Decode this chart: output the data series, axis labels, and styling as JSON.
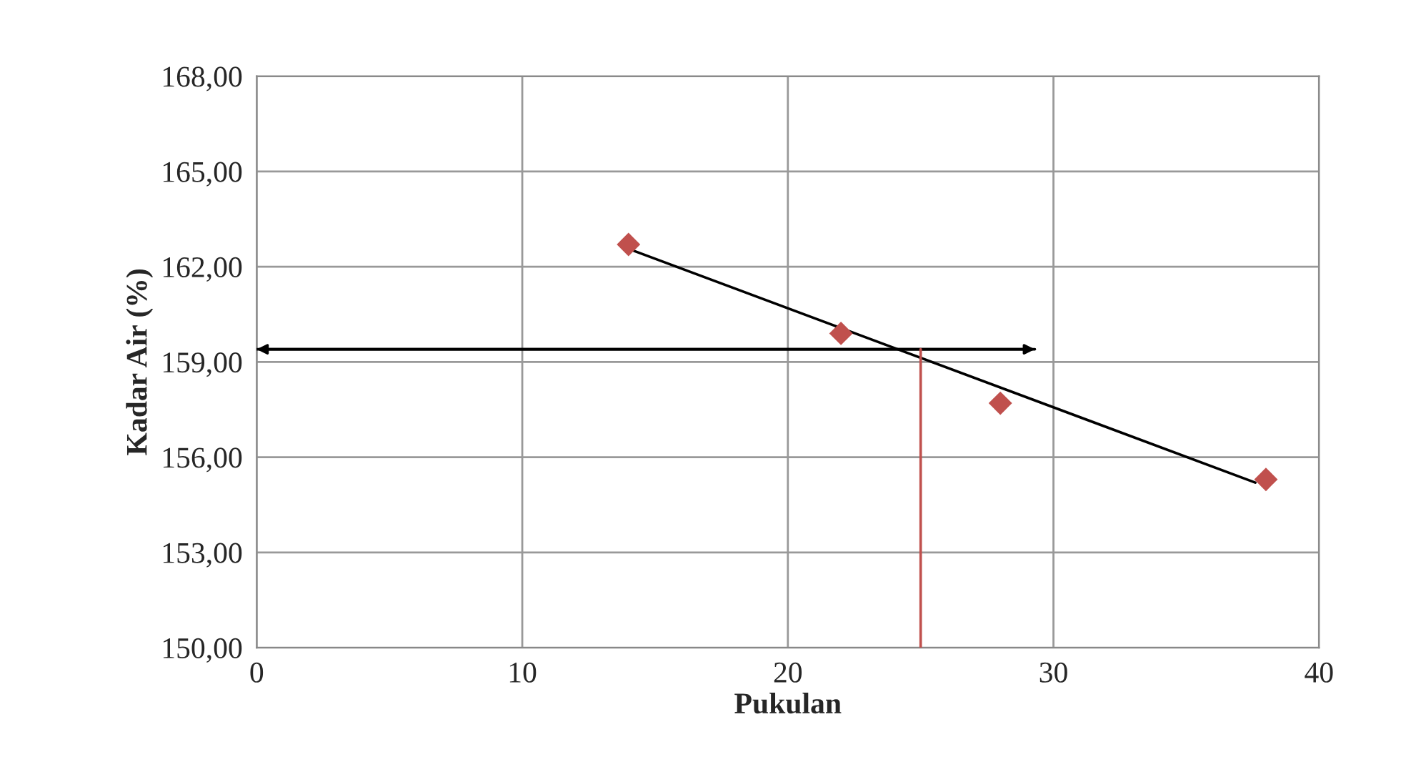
{
  "chart_data": {
    "type": "scatter",
    "xlabel": "Pukulan",
    "ylabel": "Kadar Air (%)",
    "xlim": [
      0,
      40
    ],
    "xticks": [
      0,
      10,
      20,
      30,
      40
    ],
    "ylim": [
      150,
      168
    ],
    "yticks": [
      {
        "value": 150,
        "label": "150,00"
      },
      {
        "value": 153,
        "label": "153,00"
      },
      {
        "value": 156,
        "label": "156,00"
      },
      {
        "value": 159,
        "label": "159,00"
      },
      {
        "value": 162,
        "label": "162,00"
      },
      {
        "value": 165,
        "label": "165,00"
      },
      {
        "value": 168,
        "label": "168,00"
      }
    ],
    "grid": true,
    "series": [
      {
        "marker": "diamond",
        "color": "#c0504d",
        "x": [
          14,
          22,
          28,
          38
        ],
        "values": [
          162.7,
          159.9,
          157.7,
          155.3
        ]
      },
      {
        "type": "line",
        "color": "#000000",
        "x": [
          14.2,
          37.6
        ],
        "values": [
          162.5,
          155.2
        ]
      },
      {
        "type": "line",
        "color": "#000000",
        "x": [
          0,
          29.3
        ],
        "values": [
          159.4,
          159.4
        ]
      },
      {
        "type": "line",
        "color": "#c0504d",
        "x": [
          25,
          25
        ],
        "values": [
          150,
          159.4
        ]
      }
    ]
  }
}
